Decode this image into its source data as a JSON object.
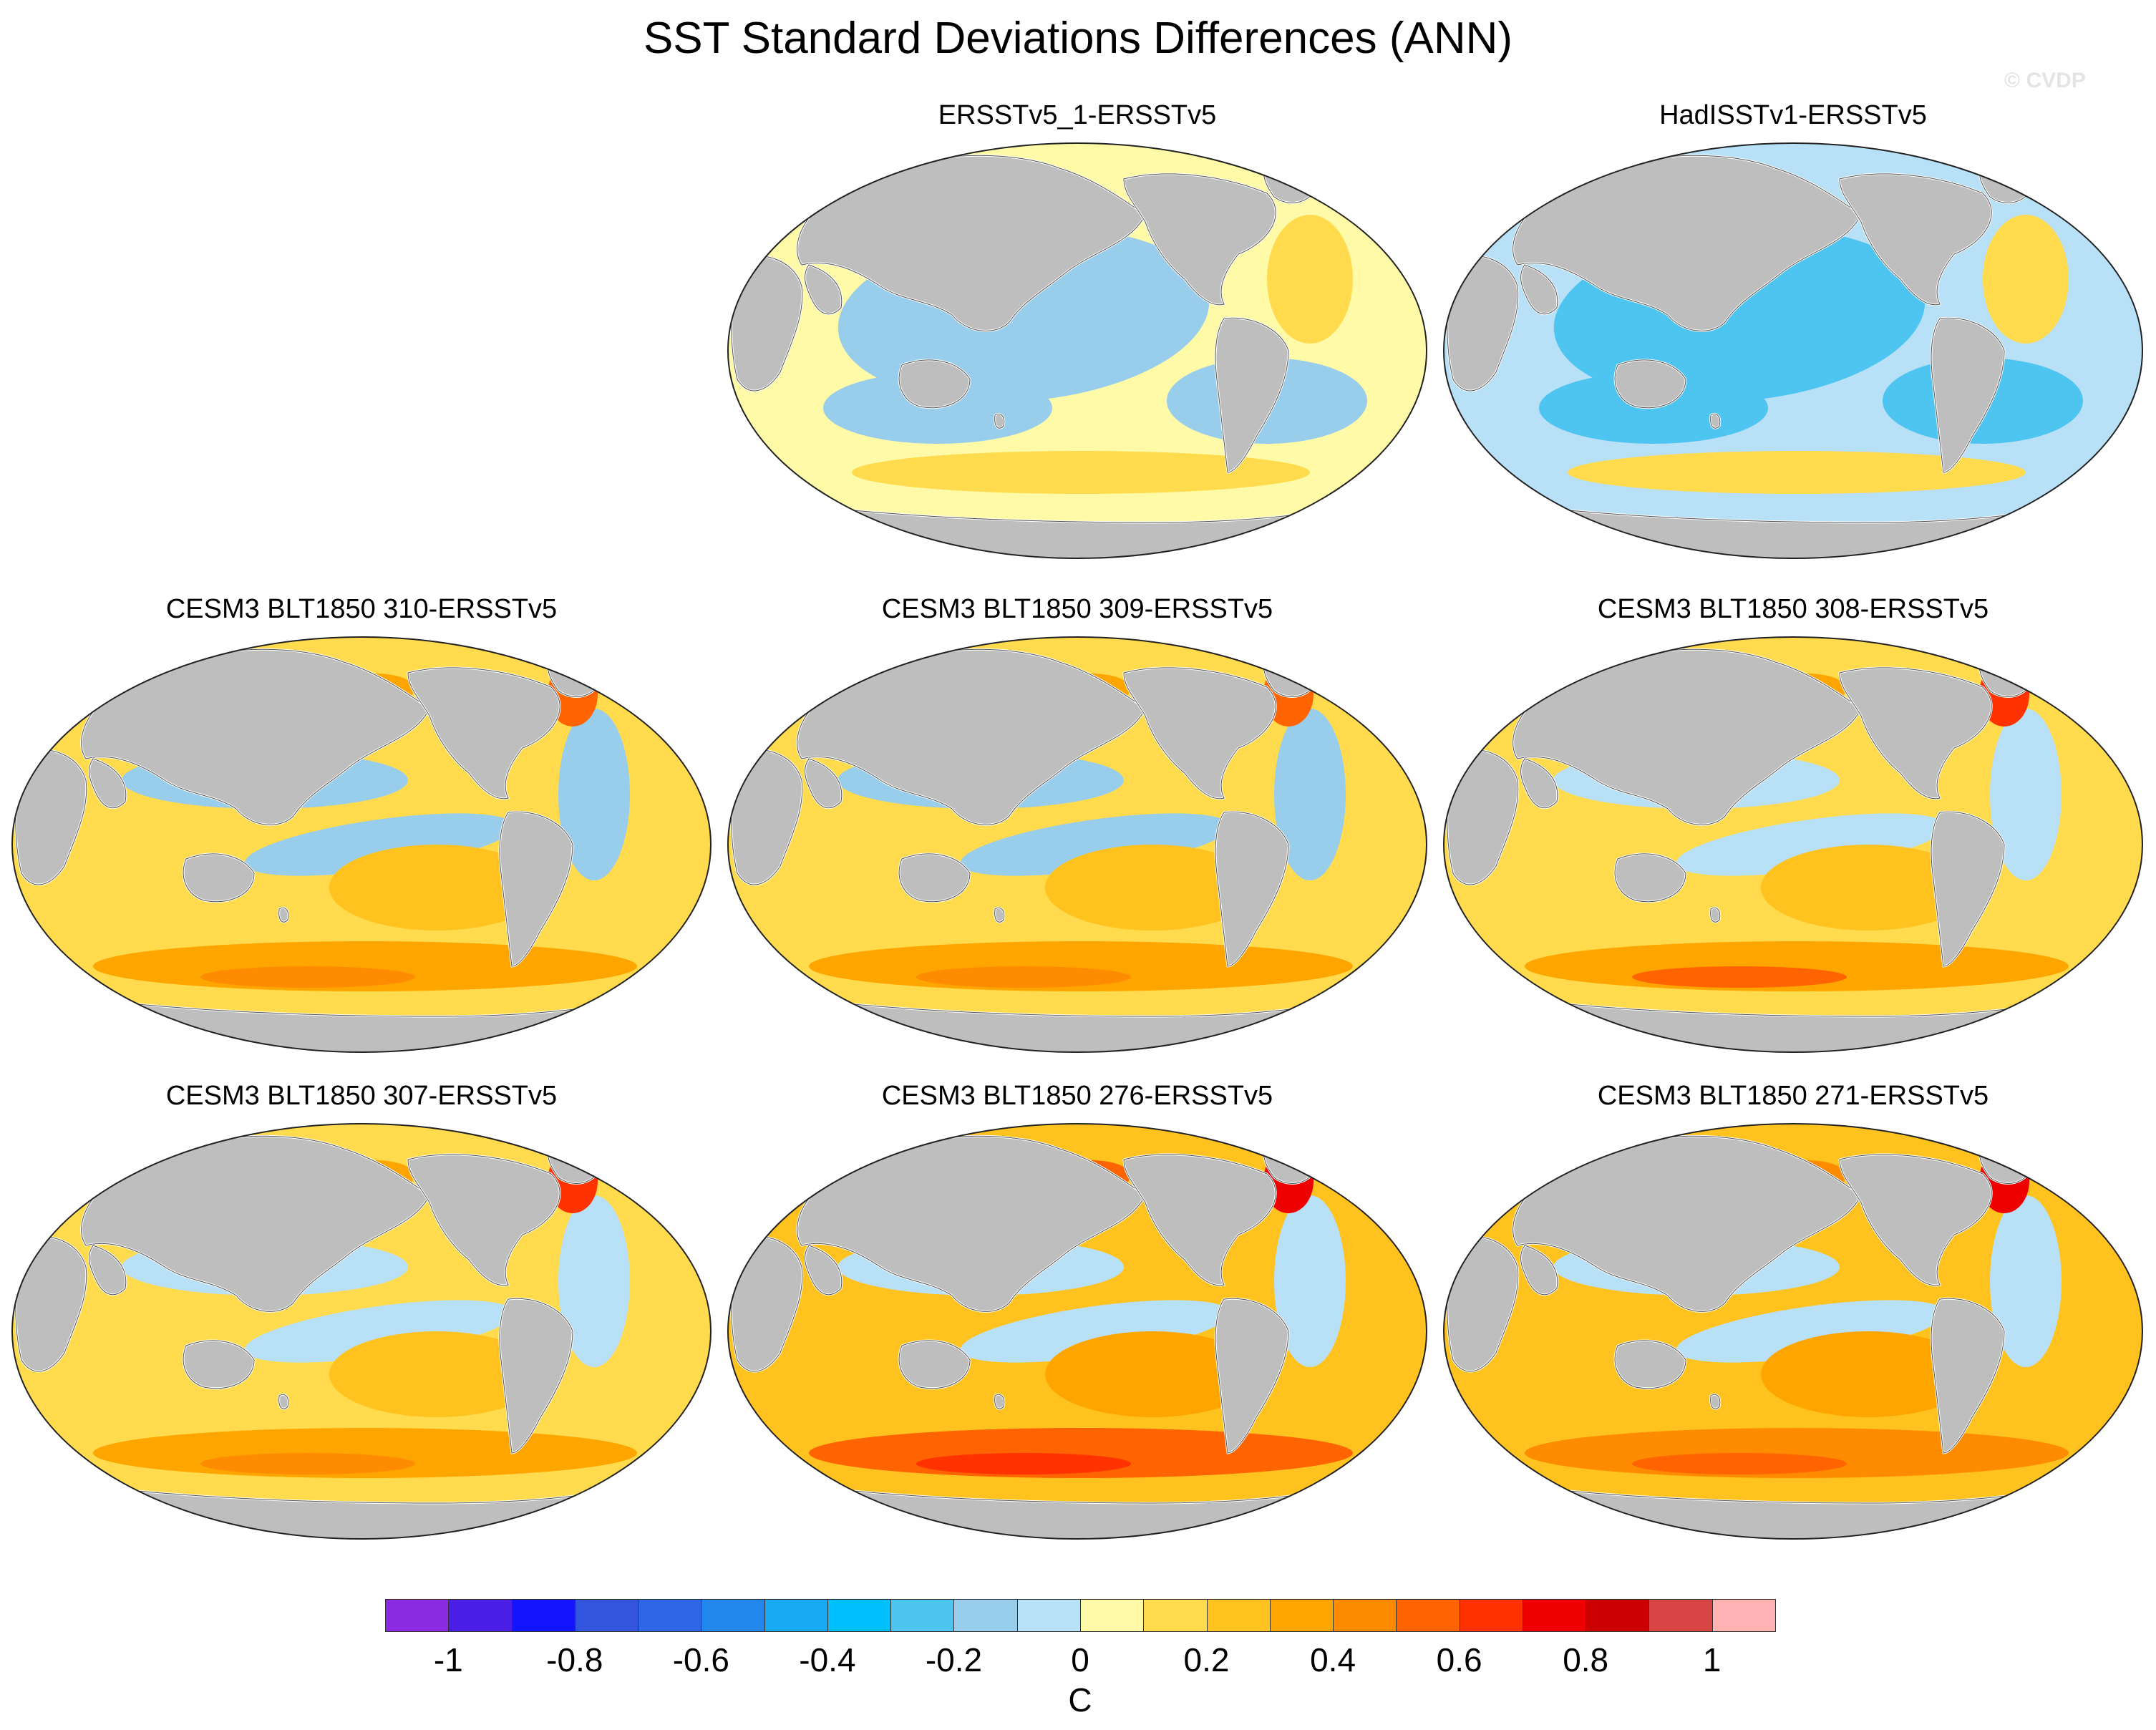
{
  "title": "SST Standard Deviations Differences (ANN)",
  "watermark": "© CVDP",
  "panels": [
    {
      "title": "ERSSTv5_1-ERSSTv5",
      "tone": "blue",
      "levels": [
        0.08,
        -0.12,
        -0.18
      ]
    },
    {
      "title": "HadISSTv1-ERSSTv5",
      "tone": "blue",
      "levels": [
        -0.08,
        -0.22,
        -0.32
      ]
    },
    {
      "title": "CESM3 BLT1850 310-ERSSTv5",
      "tone": "mixed",
      "levels": [
        0.12,
        -0.12,
        0.3
      ]
    },
    {
      "title": "CESM3 BLT1850 309-ERSSTv5",
      "tone": "mixed",
      "levels": [
        0.12,
        -0.12,
        0.32
      ]
    },
    {
      "title": "CESM3 BLT1850 308-ERSSTv5",
      "tone": "warm",
      "levels": [
        0.18,
        -0.08,
        0.38
      ]
    },
    {
      "title": "CESM3 BLT1850 307-ERSSTv5",
      "tone": "warm",
      "levels": [
        0.15,
        -0.1,
        0.35
      ]
    },
    {
      "title": "CESM3 BLT1850 276-ERSSTv5",
      "tone": "warm",
      "levels": [
        0.2,
        -0.08,
        0.5
      ]
    },
    {
      "title": "CESM3 BLT1850 271-ERSSTv5",
      "tone": "warm",
      "levels": [
        0.2,
        -0.08,
        0.45
      ]
    }
  ],
  "colorbar": {
    "units": "C",
    "labels": [
      "-1",
      "-0.8",
      "-0.6",
      "-0.4",
      "-0.2",
      "0",
      "0.2",
      "0.4",
      "0.6",
      "0.8",
      "1"
    ],
    "colors": [
      "#8a2be2",
      "#4b1ee6",
      "#1414ff",
      "#3355dd",
      "#2e66e6",
      "#2288ee",
      "#19aaf5",
      "#00bfff",
      "#4ec4f0",
      "#98cdec",
      "#b8e0f6",
      "#fffaa8",
      "#ffdb4d",
      "#ffc21f",
      "#ffa500",
      "#ff8c00",
      "#ff6400",
      "#ff3200",
      "#ee0000",
      "#cc0000",
      "#d94444",
      "#ffb3b3"
    ]
  }
}
